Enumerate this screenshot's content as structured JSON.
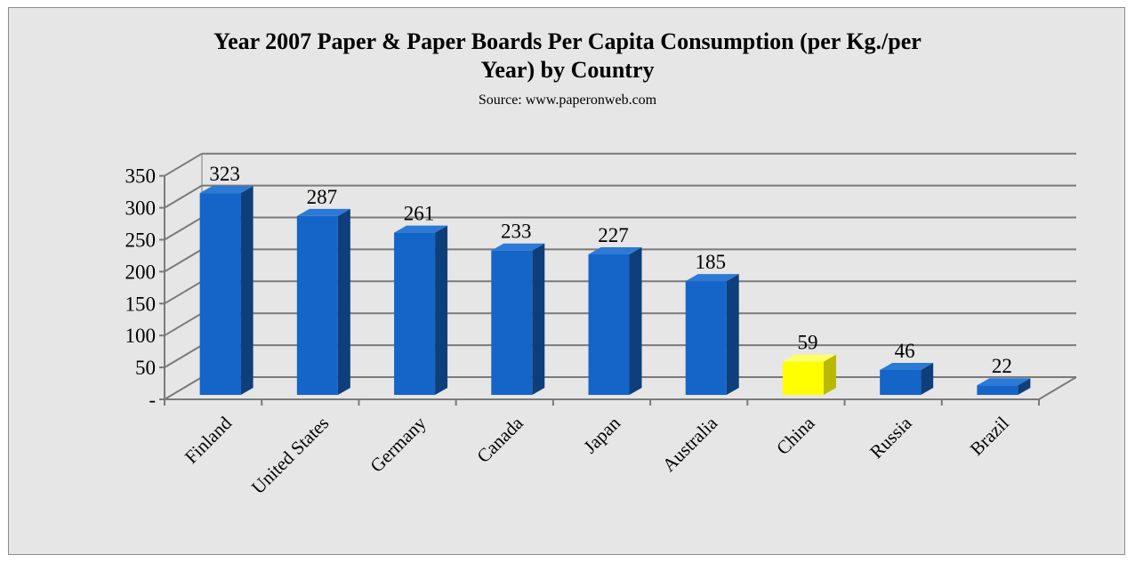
{
  "chart_data": {
    "type": "bar",
    "title_lines": [
      "Year 2007 Paper & Paper Boards Per Capita Consumption (per Kg./per",
      "Year) by Country"
    ],
    "subtitle": "Source: www.paperonweb.com",
    "categories": [
      "Finland",
      "United States",
      "Germany",
      "Canada",
      "Japan",
      "Australia",
      "China",
      "Russia",
      "Brazil"
    ],
    "values": [
      323,
      287,
      261,
      233,
      227,
      185,
      59,
      46,
      22
    ],
    "data_labels": [
      "323",
      "287",
      "261",
      "233",
      "227",
      "185",
      "59",
      "46",
      "22"
    ],
    "y_ticks": [
      0,
      50,
      100,
      150,
      200,
      250,
      300,
      350
    ],
    "y_tick_labels": [
      "-",
      "50",
      "100",
      "150",
      "200",
      "250",
      "300",
      "350"
    ],
    "ylim": [
      0,
      350
    ],
    "grid": true,
    "legend": "none",
    "bar_colors": [
      "#1565c8",
      "#1565c8",
      "#1565c8",
      "#1565c8",
      "#1565c8",
      "#1565c8",
      "#ffff00",
      "#1565c8",
      "#1565c8"
    ],
    "bar_side_colors": [
      "#0e3f7a",
      "#0e3f7a",
      "#0e3f7a",
      "#0e3f7a",
      "#0e3f7a",
      "#0e3f7a",
      "#b9b900",
      "#0e3f7a",
      "#0e3f7a"
    ],
    "bar_top_colors": [
      "#2c7ad6",
      "#2c7ad6",
      "#2c7ad6",
      "#2c7ad6",
      "#2c7ad6",
      "#2c7ad6",
      "#ffff66",
      "#2c7ad6",
      "#2c7ad6"
    ]
  }
}
